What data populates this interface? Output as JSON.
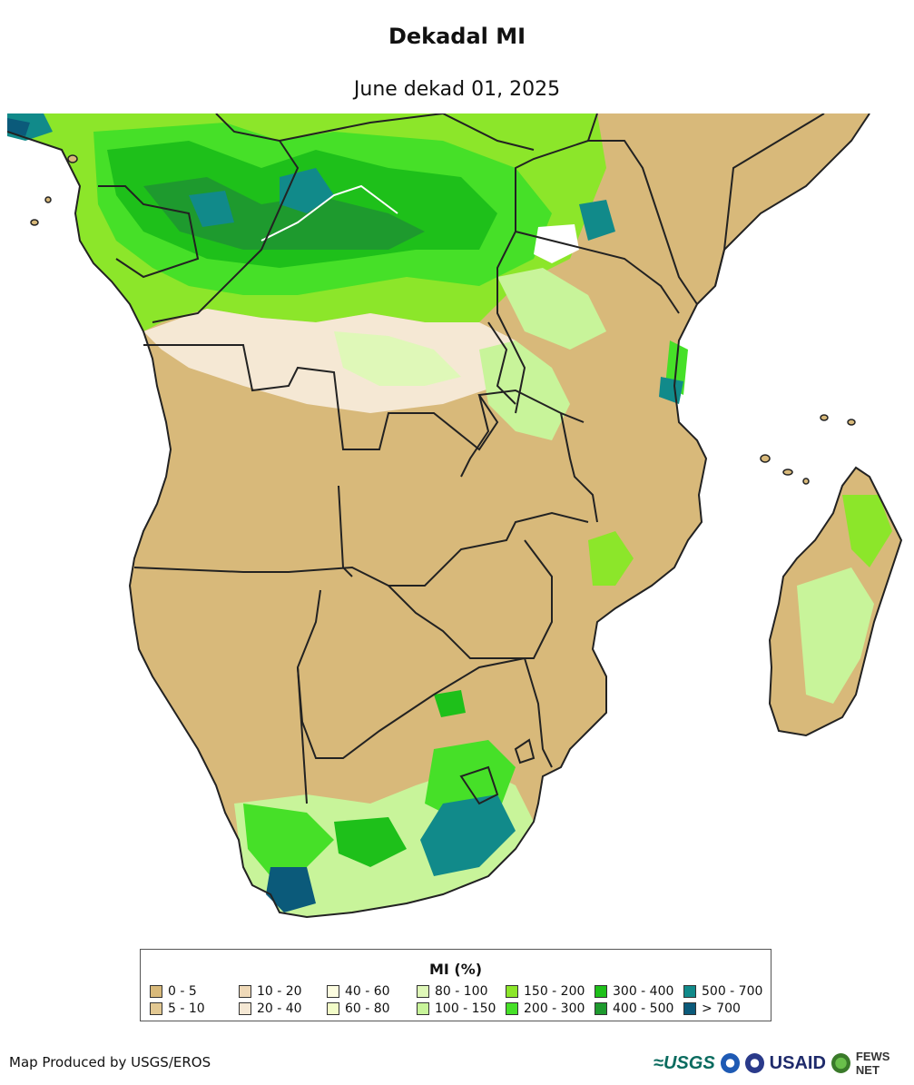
{
  "title": "Dekadal MI",
  "subtitle": "June dekad 01, 2025",
  "legend": {
    "title": "MI (%)",
    "items": [
      {
        "label": "0 - 5",
        "color": "#d8b97a"
      },
      {
        "label": "5 - 10",
        "color": "#e2c892"
      },
      {
        "label": "10 - 20",
        "color": "#efd9b8"
      },
      {
        "label": "20 - 40",
        "color": "#f5e8d4"
      },
      {
        "label": "40 - 60",
        "color": "#fdfde0"
      },
      {
        "label": "60 - 80",
        "color": "#f2fcc8"
      },
      {
        "label": "80 - 100",
        "color": "#dff8b8"
      },
      {
        "label": "100 - 150",
        "color": "#c8f49a"
      },
      {
        "label": "150 - 200",
        "color": "#8ce62a"
      },
      {
        "label": "200 - 300",
        "color": "#46e028"
      },
      {
        "label": "300 - 400",
        "color": "#1ec01a"
      },
      {
        "label": "400 - 500",
        "color": "#1e9a2e"
      },
      {
        "label": "500 - 700",
        "color": "#118a8a"
      },
      {
        "label": "> 700",
        "color": "#0b5a7a"
      }
    ]
  },
  "credit": "Map Produced by USGS/EROS",
  "logos": {
    "usgs": "≈USGS",
    "usaid": "USAID",
    "fews": "FEWS NET"
  }
}
